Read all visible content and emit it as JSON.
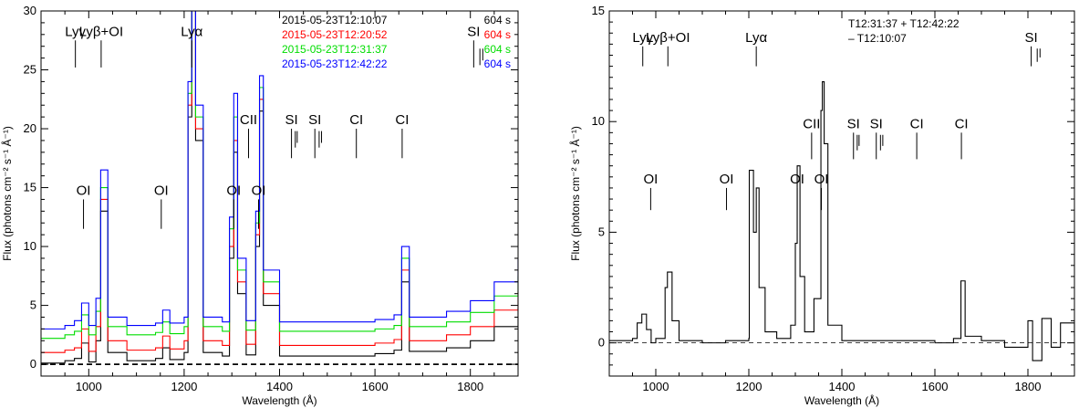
{
  "chart_data": [
    {
      "type": "line",
      "xlabel": "Wavelength (Å)",
      "ylabel": "Flux (photons cm⁻² s⁻¹ Å⁻¹)",
      "xlim": [
        900,
        1900
      ],
      "ylim": [
        -1,
        30
      ],
      "xticks": [
        1000,
        1200,
        1400,
        1600,
        1800
      ],
      "yticks": [
        0,
        5,
        10,
        15,
        20,
        25,
        30
      ],
      "grid": false,
      "legend_position": "top-right",
      "zero_line": true,
      "series": [
        {
          "name": "2015-05-23T12:10:07",
          "exposure": "604 s",
          "color": "#000000",
          "x": [
            900,
            950,
            970,
            985,
            1000,
            1015,
            1025,
            1040,
            1080,
            1140,
            1155,
            1170,
            1200,
            1208,
            1216,
            1224,
            1240,
            1280,
            1295,
            1304,
            1312,
            1330,
            1350,
            1358,
            1366,
            1400,
            1500,
            1600,
            1640,
            1656,
            1672,
            1750,
            1800,
            1850,
            1900
          ],
          "y": [
            0.1,
            0.3,
            0.5,
            1.8,
            0.2,
            2.0,
            13.0,
            1.0,
            0.3,
            0.5,
            1.4,
            0.4,
            1.0,
            21.0,
            30.0,
            19.0,
            1.0,
            0.7,
            9.0,
            18.0,
            6.0,
            0.8,
            10.0,
            21.5,
            5.0,
            0.7,
            0.7,
            0.9,
            1.2,
            7.0,
            1.1,
            1.4,
            2.0,
            3.2,
            4.8
          ]
        },
        {
          "name": "2015-05-23T12:20:52",
          "exposure": "604 s",
          "color": "#ff0000",
          "x": [
            900,
            950,
            970,
            985,
            1000,
            1015,
            1025,
            1040,
            1080,
            1140,
            1155,
            1170,
            1200,
            1208,
            1216,
            1224,
            1240,
            1280,
            1295,
            1304,
            1312,
            1330,
            1350,
            1358,
            1366,
            1400,
            1500,
            1600,
            1640,
            1656,
            1672,
            1750,
            1800,
            1850,
            1900
          ],
          "y": [
            1.0,
            1.2,
            1.4,
            3.0,
            1.1,
            3.2,
            14.0,
            2.0,
            1.2,
            1.4,
            2.4,
            1.3,
            2.0,
            22.0,
            30.0,
            20.0,
            2.0,
            1.6,
            10.0,
            19.0,
            7.0,
            1.7,
            11.0,
            22.5,
            6.0,
            1.6,
            1.6,
            1.8,
            2.1,
            8.0,
            2.0,
            2.5,
            3.2,
            4.6,
            6.2
          ]
        },
        {
          "name": "2015-05-23T12:31:37",
          "exposure": "604 s",
          "color": "#00dd00",
          "x": [
            900,
            950,
            970,
            985,
            1000,
            1015,
            1025,
            1040,
            1080,
            1140,
            1155,
            1170,
            1200,
            1208,
            1216,
            1224,
            1240,
            1280,
            1295,
            1304,
            1312,
            1330,
            1350,
            1358,
            1366,
            1400,
            1500,
            1600,
            1640,
            1656,
            1672,
            1750,
            1800,
            1850,
            1900
          ],
          "y": [
            2.2,
            2.5,
            2.8,
            4.2,
            2.5,
            4.5,
            15.0,
            3.2,
            2.5,
            2.7,
            3.6,
            2.6,
            3.2,
            23.0,
            30.0,
            21.0,
            3.2,
            2.8,
            11.5,
            21.0,
            8.0,
            2.9,
            12.0,
            23.5,
            7.0,
            2.8,
            2.8,
            3.0,
            3.3,
            9.0,
            3.2,
            3.6,
            4.4,
            5.8,
            7.5
          ]
        },
        {
          "name": "2015-05-23T12:42:22",
          "exposure": "604 s",
          "color": "#0000ff",
          "x": [
            900,
            950,
            970,
            985,
            1000,
            1015,
            1025,
            1040,
            1080,
            1140,
            1155,
            1170,
            1200,
            1208,
            1216,
            1224,
            1240,
            1280,
            1295,
            1304,
            1312,
            1330,
            1350,
            1358,
            1366,
            1400,
            1500,
            1600,
            1640,
            1656,
            1672,
            1750,
            1800,
            1850,
            1900
          ],
          "y": [
            3.0,
            3.3,
            3.7,
            5.2,
            3.3,
            5.6,
            16.5,
            4.0,
            3.3,
            3.5,
            4.6,
            3.5,
            4.0,
            24.0,
            30.0,
            22.0,
            4.0,
            3.6,
            12.5,
            23.0,
            9.0,
            3.7,
            13.0,
            24.5,
            8.0,
            3.6,
            3.6,
            3.8,
            4.2,
            10.0,
            4.0,
            4.5,
            5.4,
            7.0,
            9.0
          ]
        }
      ],
      "annotations": [
        {
          "text": "Lyγ",
          "x": 972,
          "y_top": 27.5,
          "y_bottom": 25.2
        },
        {
          "text": "Lyβ+OI",
          "x": 1026,
          "y_top": 27.5,
          "y_bottom": 25.2
        },
        {
          "text": "Lyα",
          "x": 1216,
          "y_top": 27.5,
          "y_bottom": 25.2
        },
        {
          "text": "SI",
          "x": 1807,
          "y_top": 27.5,
          "y_bottom": 25.2
        },
        {
          "text": "SI",
          "x": 1820,
          "y_top": 26.8,
          "y_bottom": 25.4
        },
        {
          "text": "SI",
          "x": 1826,
          "y_top": 26.8,
          "y_bottom": 25.8
        },
        {
          "text": "CII",
          "x": 1335,
          "y_top": 20.0,
          "y_bottom": 17.5
        },
        {
          "text": "SI",
          "x": 1425,
          "y_top": 20.0,
          "y_bottom": 17.5
        },
        {
          "text": "SI",
          "x": 1433,
          "y_top": 19.8,
          "y_bottom": 18.4
        },
        {
          "text": "SI",
          "x": 1437,
          "y_top": 19.8,
          "y_bottom": 18.8
        },
        {
          "text": "SI",
          "x": 1474,
          "y_top": 20.0,
          "y_bottom": 17.5
        },
        {
          "text": "SI",
          "x": 1483,
          "y_top": 19.8,
          "y_bottom": 18.4
        },
        {
          "text": "SI",
          "x": 1488,
          "y_top": 19.8,
          "y_bottom": 18.8
        },
        {
          "text": "CI",
          "x": 1561,
          "y_top": 20.0,
          "y_bottom": 17.5
        },
        {
          "text": "CI",
          "x": 1657,
          "y_top": 20.0,
          "y_bottom": 17.5
        },
        {
          "text": "OI",
          "x": 989,
          "y_top": 14.0,
          "y_bottom": 11.5
        },
        {
          "text": "OI",
          "x": 1152,
          "y_top": 14.0,
          "y_bottom": 11.5
        },
        {
          "text": "OI",
          "x": 1304,
          "y_top": 14.0,
          "y_bottom": 11.5
        },
        {
          "text": "OI",
          "x": 1356,
          "y_top": 14.0,
          "y_bottom": 11.5
        }
      ]
    },
    {
      "type": "line",
      "xlabel": "Wavelength (Å)",
      "ylabel": "Flux (photons cm⁻² s⁻¹ Å⁻¹)",
      "xlim": [
        900,
        1900
      ],
      "ylim": [
        -1.5,
        15
      ],
      "xticks": [
        1000,
        1200,
        1400,
        1600,
        1800
      ],
      "yticks": [
        0,
        5,
        10,
        15
      ],
      "grid": false,
      "zero_line": true,
      "inset_text": [
        "T12:31:37 + T12:42:22",
        "– T12:10:07"
      ],
      "series": [
        {
          "color": "#000000",
          "x": [
            900,
            950,
            960,
            970,
            980,
            990,
            1000,
            1020,
            1025,
            1035,
            1050,
            1100,
            1150,
            1200,
            1201,
            1210,
            1216,
            1222,
            1235,
            1260,
            1290,
            1300,
            1304,
            1310,
            1320,
            1340,
            1355,
            1358,
            1362,
            1370,
            1400,
            1500,
            1600,
            1640,
            1656,
            1665,
            1700,
            1750,
            1800,
            1810,
            1830,
            1850,
            1870,
            1900
          ],
          "y": [
            0.1,
            0.2,
            0.9,
            1.3,
            0.6,
            0.0,
            0.2,
            2.5,
            3.2,
            1.0,
            0.1,
            0.0,
            0.1,
            0.2,
            7.8,
            5.0,
            7.0,
            2.5,
            0.5,
            0.2,
            0.8,
            4.5,
            8.0,
            3.0,
            0.5,
            2.0,
            10.5,
            11.8,
            9.0,
            0.8,
            0.1,
            0.1,
            0.0,
            0.2,
            2.8,
            0.3,
            0.1,
            -0.2,
            1.0,
            -0.8,
            1.1,
            -0.2,
            0.9,
            0.3
          ]
        }
      ],
      "annotations": [
        {
          "text": "Lyγ",
          "x": 972,
          "y_top": 13.4,
          "y_bottom": 12.5
        },
        {
          "text": "Lyβ+OI",
          "x": 1026,
          "y_top": 13.4,
          "y_bottom": 12.5
        },
        {
          "text": "Lyα",
          "x": 1216,
          "y_top": 13.4,
          "y_bottom": 12.5
        },
        {
          "text": "SI",
          "x": 1807,
          "y_top": 13.4,
          "y_bottom": 12.5
        },
        {
          "text": "SI",
          "x": 1820,
          "y_top": 13.3,
          "y_bottom": 12.7
        },
        {
          "text": "SI",
          "x": 1826,
          "y_top": 13.3,
          "y_bottom": 12.9
        },
        {
          "text": "CII",
          "x": 1335,
          "y_top": 9.5,
          "y_bottom": 8.3
        },
        {
          "text": "SI",
          "x": 1425,
          "y_top": 9.5,
          "y_bottom": 8.3
        },
        {
          "text": "SI",
          "x": 1433,
          "y_top": 9.4,
          "y_bottom": 8.7
        },
        {
          "text": "SI",
          "x": 1437,
          "y_top": 9.4,
          "y_bottom": 8.9
        },
        {
          "text": "SI",
          "x": 1474,
          "y_top": 9.5,
          "y_bottom": 8.3
        },
        {
          "text": "SI",
          "x": 1483,
          "y_top": 9.4,
          "y_bottom": 8.7
        },
        {
          "text": "SI",
          "x": 1488,
          "y_top": 9.4,
          "y_bottom": 8.9
        },
        {
          "text": "CI",
          "x": 1561,
          "y_top": 9.5,
          "y_bottom": 8.3
        },
        {
          "text": "CI",
          "x": 1657,
          "y_top": 9.5,
          "y_bottom": 8.3
        },
        {
          "text": "OI",
          "x": 989,
          "y_top": 7.0,
          "y_bottom": 6.0
        },
        {
          "text": "OI",
          "x": 1152,
          "y_top": 7.0,
          "y_bottom": 6.0
        },
        {
          "text": "OI",
          "x": 1304,
          "y_top": 7.0,
          "y_bottom": 6.0
        },
        {
          "text": "OI",
          "x": 1356,
          "y_top": 7.0,
          "y_bottom": 6.0
        }
      ]
    }
  ]
}
